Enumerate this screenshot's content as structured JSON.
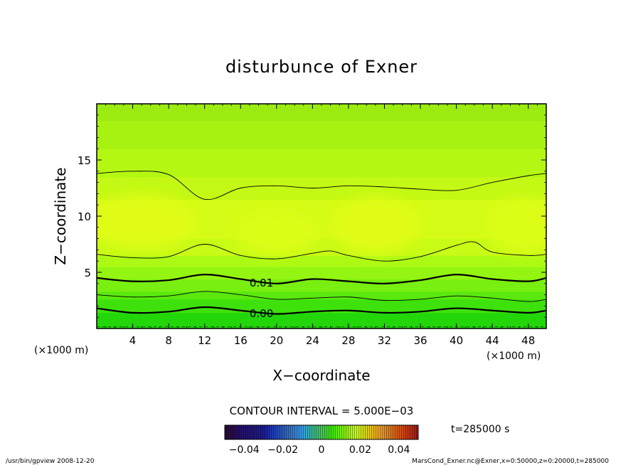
{
  "chart_data": {
    "type": "heatmap",
    "subtype": "contour",
    "title": "disturbunce of Exner",
    "xlabel": "X−coordinate",
    "ylabel": "Z−coordinate",
    "x_unit_left": "(×1000 m)",
    "x_unit_right": "(×1000 m)",
    "x_ticks": [
      "4",
      "8",
      "12",
      "16",
      "20",
      "24",
      "28",
      "32",
      "36",
      "40",
      "44",
      "48"
    ],
    "y_ticks": [
      "5",
      "10",
      "15"
    ],
    "xlim": [
      0,
      50
    ],
    "ylim": [
      0,
      20
    ],
    "contour_interval_text": "CONTOUR INTERVAL = 5.000E−03",
    "contour_labels": [
      {
        "text": "0.01",
        "x": 17.0,
        "z": 4.1
      },
      {
        "text": "0.00",
        "x": 17.0,
        "z": 1.4
      }
    ],
    "colorbar": {
      "ticks": [
        "−0.04",
        "−0.02",
        "0",
        "0.02",
        "0.04"
      ],
      "range": [
        -0.05,
        0.05
      ]
    },
    "time_label": "t=285000 s",
    "footer_left": "/usr/bin/gpview  2008-12-20",
    "footer_right": "MarsCond_Exner.nc@Exner,x=0:50000,z=0:20000,t=285000",
    "contours": [
      {
        "level": 0.0,
        "weight": "bold",
        "points": [
          [
            0,
            1.8
          ],
          [
            4,
            1.4
          ],
          [
            8,
            1.5
          ],
          [
            12,
            1.9
          ],
          [
            16,
            1.6
          ],
          [
            20,
            1.3
          ],
          [
            24,
            1.5
          ],
          [
            28,
            1.6
          ],
          [
            32,
            1.4
          ],
          [
            36,
            1.5
          ],
          [
            40,
            1.8
          ],
          [
            44,
            1.6
          ],
          [
            48,
            1.4
          ],
          [
            50,
            1.6
          ]
        ]
      },
      {
        "level": 0.005,
        "weight": "thin",
        "points": [
          [
            0,
            3.0
          ],
          [
            4,
            2.8
          ],
          [
            8,
            2.9
          ],
          [
            12,
            3.3
          ],
          [
            16,
            3.0
          ],
          [
            20,
            2.6
          ],
          [
            24,
            2.7
          ],
          [
            28,
            2.8
          ],
          [
            32,
            2.5
          ],
          [
            36,
            2.6
          ],
          [
            40,
            2.9
          ],
          [
            44,
            2.7
          ],
          [
            48,
            2.4
          ],
          [
            50,
            2.6
          ]
        ]
      },
      {
        "level": 0.01,
        "weight": "bold",
        "points": [
          [
            0,
            4.5
          ],
          [
            4,
            4.2
          ],
          [
            8,
            4.3
          ],
          [
            12,
            4.8
          ],
          [
            16,
            4.4
          ],
          [
            20,
            4.0
          ],
          [
            24,
            4.4
          ],
          [
            28,
            4.2
          ],
          [
            32,
            4.0
          ],
          [
            36,
            4.3
          ],
          [
            40,
            4.8
          ],
          [
            44,
            4.4
          ],
          [
            48,
            4.2
          ],
          [
            50,
            4.5
          ]
        ]
      },
      {
        "level": 0.015,
        "weight": "thin",
        "points": [
          [
            0,
            6.6
          ],
          [
            4,
            6.3
          ],
          [
            8,
            6.4
          ],
          [
            12,
            7.5
          ],
          [
            16,
            6.5
          ],
          [
            20,
            6.2
          ],
          [
            24,
            6.7
          ],
          [
            26,
            6.9
          ],
          [
            28,
            6.5
          ],
          [
            32,
            6.0
          ],
          [
            36,
            6.4
          ],
          [
            40,
            7.4
          ],
          [
            42,
            7.7
          ],
          [
            44,
            6.8
          ],
          [
            48,
            6.5
          ],
          [
            50,
            6.6
          ]
        ]
      },
      {
        "level": 0.015,
        "weight": "thin",
        "points": [
          [
            0,
            13.8
          ],
          [
            4,
            14.0
          ],
          [
            8,
            13.7
          ],
          [
            12,
            11.5
          ],
          [
            16,
            12.5
          ],
          [
            20,
            12.7
          ],
          [
            24,
            12.5
          ],
          [
            28,
            12.7
          ],
          [
            32,
            12.6
          ],
          [
            36,
            12.4
          ],
          [
            40,
            12.3
          ],
          [
            44,
            13.0
          ],
          [
            48,
            13.6
          ],
          [
            50,
            13.8
          ]
        ]
      }
    ],
    "field_bands": [
      {
        "z_from": 0.0,
        "z_to": 1.4,
        "color": "#22d60a"
      },
      {
        "z_from": 1.4,
        "z_to": 2.6,
        "color": "#3ee10c"
      },
      {
        "z_from": 2.6,
        "z_to": 3.3,
        "color": "#5ae80e"
      },
      {
        "z_from": 3.3,
        "z_to": 4.4,
        "color": "#78ef10"
      },
      {
        "z_from": 4.4,
        "z_to": 5.5,
        "color": "#94f512"
      },
      {
        "z_from": 5.5,
        "z_to": 6.5,
        "color": "#acfa14"
      },
      {
        "z_from": 6.5,
        "z_to": 8.0,
        "color": "#c8fb16"
      },
      {
        "z_from": 8.0,
        "z_to": 11.5,
        "color": "#d4fc16"
      },
      {
        "z_from": 11.5,
        "z_to": 13.5,
        "color": "#c3f914"
      },
      {
        "z_from": 13.5,
        "z_to": 16.0,
        "color": "#b4f713"
      },
      {
        "z_from": 16.0,
        "z_to": 18.5,
        "color": "#a8f212"
      },
      {
        "z_from": 18.5,
        "z_to": 20.0,
        "color": "#9cec11"
      }
    ],
    "highlight_blobs": [
      {
        "x": 5.0,
        "z": 9.5,
        "rx": 6.0,
        "rz": 2.4,
        "color": "#e0fc18"
      },
      {
        "x": 20.0,
        "z": 8.5,
        "rx": 4.5,
        "rz": 2.0,
        "color": "#dcfd17"
      },
      {
        "x": 31.0,
        "z": 9.2,
        "rx": 5.0,
        "rz": 2.5,
        "color": "#e0fc18"
      },
      {
        "x": 47.5,
        "z": 9.2,
        "rx": 4.0,
        "rz": 2.5,
        "color": "#dcfd17"
      }
    ]
  }
}
